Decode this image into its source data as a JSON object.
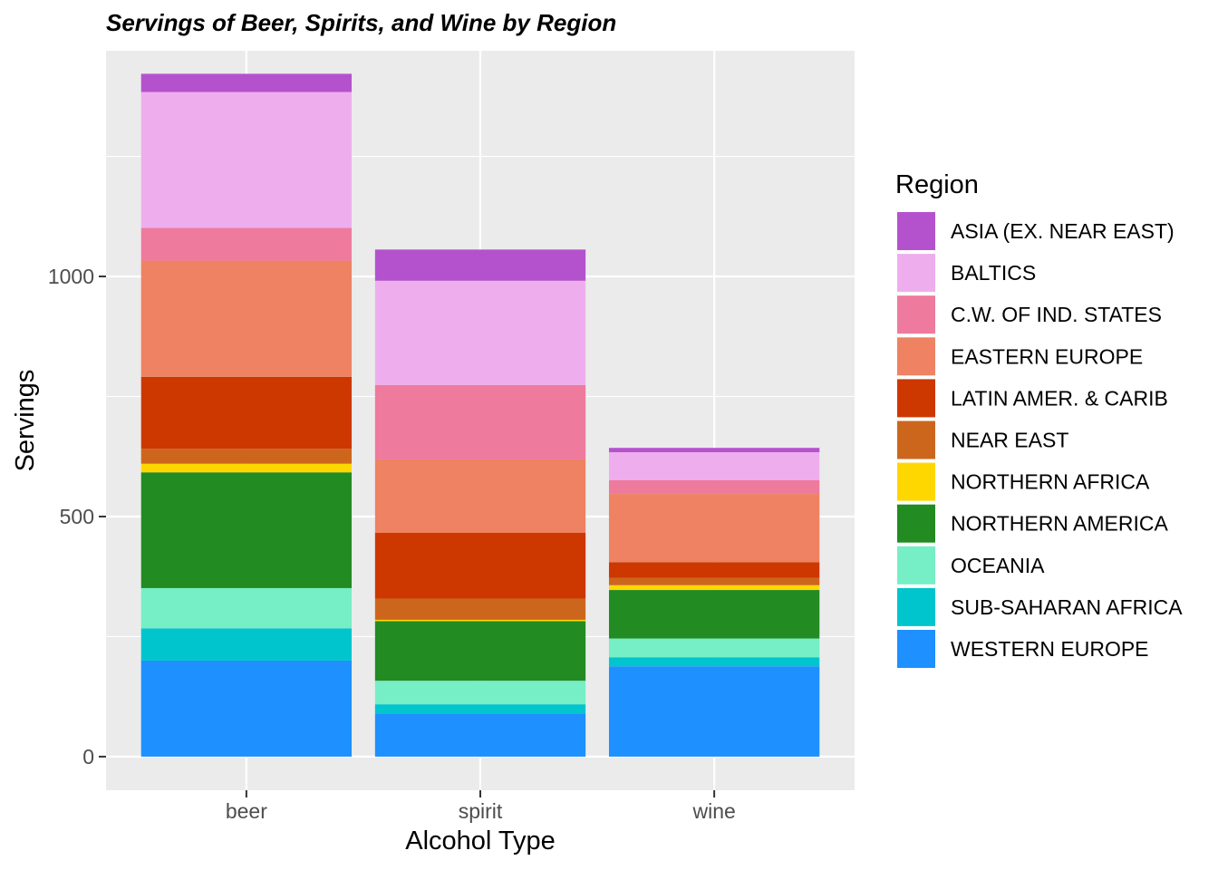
{
  "chart_data": {
    "type": "bar",
    "stacked": true,
    "title": "Servings of Beer, Spirits, and Wine by Region",
    "xlabel": "Alcohol Type",
    "ylabel": "Servings",
    "categories": [
      "beer",
      "spirit",
      "wine"
    ],
    "ylim": [
      -70,
      1470
    ],
    "yticks": [
      0,
      500,
      1000
    ],
    "grid": true,
    "legend": {
      "title": "Region",
      "position": "right"
    },
    "series": [
      {
        "name": "ASIA (EX. NEAR EAST)",
        "color": "#B452CD",
        "values": [
          38,
          65,
          9
        ]
      },
      {
        "name": "BALTICS",
        "color": "#EEAEEE",
        "values": [
          283,
          217,
          58
        ]
      },
      {
        "name": "C.W. OF IND. STATES",
        "color": "#EE7A9E",
        "values": [
          68,
          155,
          29
        ]
      },
      {
        "name": "EASTERN EUROPE",
        "color": "#EE8262",
        "values": [
          242,
          153,
          142
        ]
      },
      {
        "name": "LATIN AMER. & CARIB",
        "color": "#CD3700",
        "values": [
          150,
          137,
          33
        ]
      },
      {
        "name": "NEAR EAST",
        "color": "#CD661D",
        "values": [
          31,
          44,
          15
        ]
      },
      {
        "name": "NORTHERN AFRICA",
        "color": "#FFD700",
        "values": [
          18,
          3,
          10
        ]
      },
      {
        "name": "NORTHERN AMERICA",
        "color": "#228B22",
        "values": [
          241,
          124,
          101
        ]
      },
      {
        "name": "OCEANIA",
        "color": "#76EEC6",
        "values": [
          84,
          49,
          39
        ]
      },
      {
        "name": "SUB-SAHARAN AFRICA",
        "color": "#00C5CD",
        "values": [
          67,
          19,
          19
        ]
      },
      {
        "name": "WESTERN EUROPE",
        "color": "#1E90FF",
        "values": [
          200,
          90,
          188
        ]
      }
    ]
  }
}
